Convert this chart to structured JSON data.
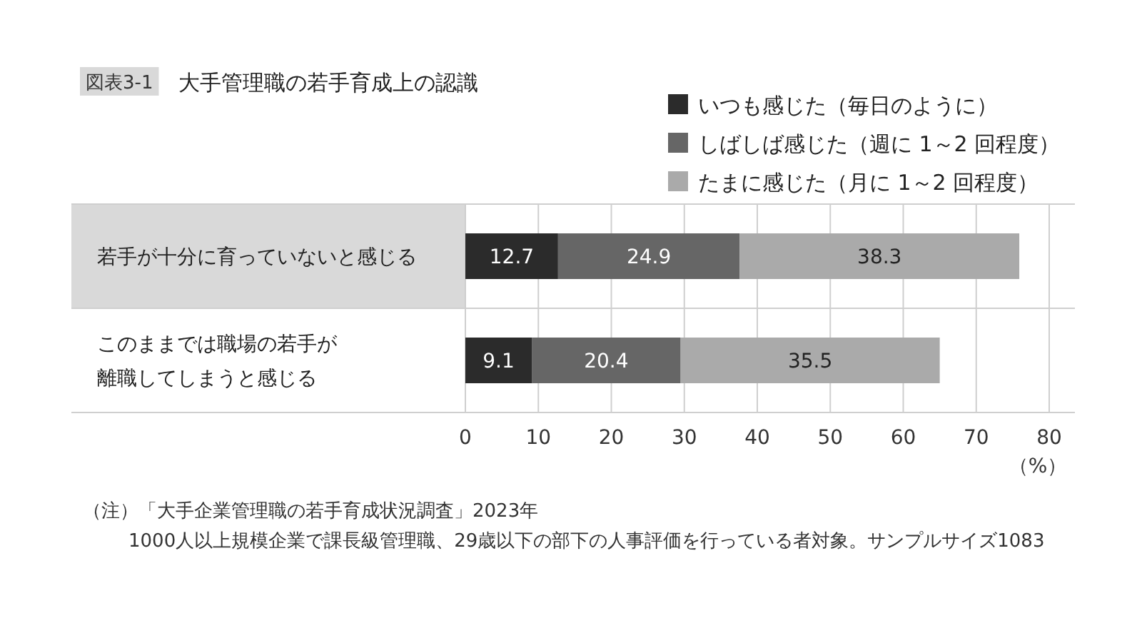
{
  "chart_data": {
    "type": "bar",
    "orientation": "horizontal",
    "stacked": true,
    "title": "大手管理職の若手育成上の認識",
    "categories": [
      "若手が十分に育っていないと感じる",
      "このままでは職場の若手が離職してしまうと感じる"
    ],
    "series": [
      {
        "name": "いつも感じた（毎日のように）",
        "color": "#2b2b2b",
        "values": [
          12.7,
          9.1
        ]
      },
      {
        "name": "しばしば感じた（週に 1～2 回程度）",
        "color": "#666666",
        "values": [
          24.9,
          20.4
        ]
      },
      {
        "name": "たまに感じた（月に 1～2 回程度）",
        "color": "#aaaaaa",
        "values": [
          38.3,
          35.5
        ]
      }
    ],
    "xlim": [
      0,
      80
    ],
    "xticks": [
      0,
      10,
      20,
      30,
      40,
      50,
      60,
      70,
      80
    ],
    "xlabel": "（%）",
    "grid": "x",
    "legend": "top right",
    "data_labels": true,
    "annotations": [
      "図表3-1",
      "（注）「大手企業管理職の若手育成状況調査」2023年",
      "1000人以上規模企業で課長級管理職、29歳以下の部下の人事評価を行っている者対象。サンプルサイズ1083"
    ]
  }
}
